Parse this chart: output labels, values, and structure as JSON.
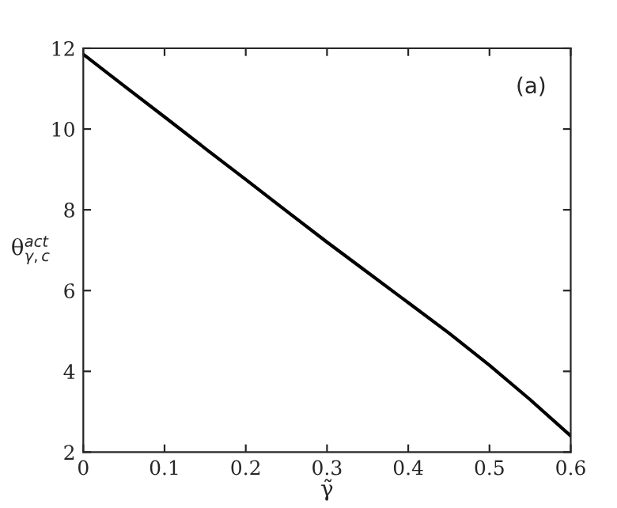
{
  "chart_data": {
    "type": "line",
    "xlabel": "γ̃",
    "ylabel": "θ$^{act}$$_{γ,c}$",
    "annotations": [
      "(a)"
    ],
    "x": [
      0,
      0.05,
      0.1,
      0.15,
      0.2,
      0.25,
      0.3,
      0.35,
      0.4,
      0.45,
      0.5,
      0.55,
      0.6
    ],
    "series": [
      {
        "color": "#000000",
        "values": [
          11.85,
          11.07,
          10.3,
          9.52,
          8.75,
          7.97,
          7.2,
          6.45,
          5.7,
          4.95,
          4.15,
          3.3,
          2.4
        ]
      }
    ],
    "xlim": [
      0,
      0.6
    ],
    "ylim": [
      2,
      12
    ],
    "xticks": [
      0,
      0.1,
      0.2,
      0.3,
      0.4,
      0.5,
      0.6
    ],
    "yticks": [
      2,
      4,
      6,
      8,
      10,
      12
    ],
    "grid": false,
    "legend": false,
    "marker": "none",
    "line_style": "solid"
  }
}
